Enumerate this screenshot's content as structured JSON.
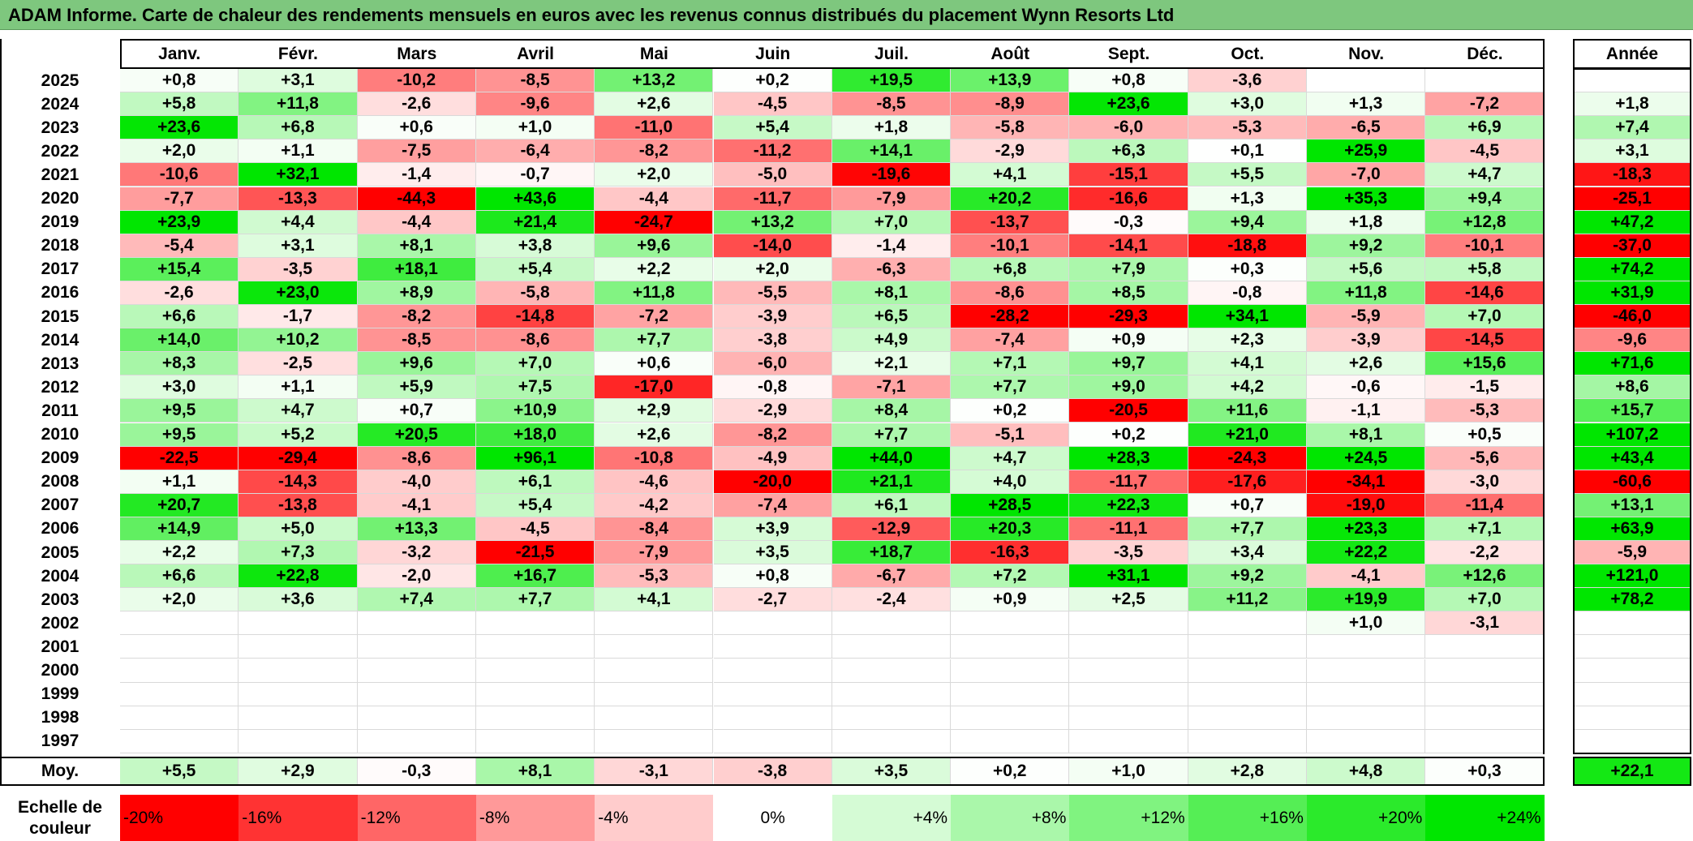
{
  "title": "ADAM Informe. Carte de chaleur des rendements mensuels en euros avec les revenus connus distribués du placement Wynn Resorts Ltd",
  "chart_data": {
    "type": "heatmap",
    "title": "ADAM Informe. Carte de chaleur des rendements mensuels en euros avec les revenus connus distribués du placement Wynn Resorts Ltd",
    "columns": [
      "Janv.",
      "Févr.",
      "Mars",
      "Avril",
      "Mai",
      "Juin",
      "Juil.",
      "Août",
      "Sept.",
      "Oct.",
      "Nov.",
      "Déc."
    ],
    "year_header": "Année",
    "rows": [
      {
        "year": "2025",
        "months": [
          "+0,8",
          "+3,1",
          "-10,2",
          "-8,5",
          "+13,2",
          "+0,2",
          "+19,5",
          "+13,9",
          "+0,8",
          "-3,6",
          "",
          ""
        ],
        "annual": ""
      },
      {
        "year": "2024",
        "months": [
          "+5,8",
          "+11,8",
          "-2,6",
          "-9,6",
          "+2,6",
          "-4,5",
          "-8,5",
          "-8,9",
          "+23,6",
          "+3,0",
          "+1,3",
          "-7,2"
        ],
        "annual": "+1,8"
      },
      {
        "year": "2023",
        "months": [
          "+23,6",
          "+6,8",
          "+0,6",
          "+1,0",
          "-11,0",
          "+5,4",
          "+1,8",
          "-5,8",
          "-6,0",
          "-5,3",
          "-6,5",
          "+6,9"
        ],
        "annual": "+7,4"
      },
      {
        "year": "2022",
        "months": [
          "+2,0",
          "+1,1",
          "-7,5",
          "-6,4",
          "-8,2",
          "-11,2",
          "+14,1",
          "-2,9",
          "+6,3",
          "+0,1",
          "+25,9",
          "-4,5"
        ],
        "annual": "+3,1"
      },
      {
        "year": "2021",
        "months": [
          "-10,6",
          "+32,1",
          "-1,4",
          "-0,7",
          "+2,0",
          "-5,0",
          "-19,6",
          "+4,1",
          "-15,1",
          "+5,5",
          "-7,0",
          "+4,7"
        ],
        "annual": "-18,3"
      },
      {
        "year": "2020",
        "months": [
          "-7,7",
          "-13,3",
          "-44,3",
          "+43,6",
          "-4,4",
          "-11,7",
          "-7,9",
          "+20,2",
          "-16,6",
          "+1,3",
          "+35,3",
          "+9,4"
        ],
        "annual": "-25,1"
      },
      {
        "year": "2019",
        "months": [
          "+23,9",
          "+4,4",
          "-4,4",
          "+21,4",
          "-24,7",
          "+13,2",
          "+7,0",
          "-13,7",
          "-0,3",
          "+9,4",
          "+1,8",
          "+12,8"
        ],
        "annual": "+47,2"
      },
      {
        "year": "2018",
        "months": [
          "-5,4",
          "+3,1",
          "+8,1",
          "+3,8",
          "+9,6",
          "-14,0",
          "-1,4",
          "-10,1",
          "-14,1",
          "-18,8",
          "+9,2",
          "-10,1"
        ],
        "annual": "-37,0"
      },
      {
        "year": "2017",
        "months": [
          "+15,4",
          "-3,5",
          "+18,1",
          "+5,4",
          "+2,2",
          "+2,0",
          "-6,3",
          "+6,8",
          "+7,9",
          "+0,3",
          "+5,6",
          "+5,8"
        ],
        "annual": "+74,2"
      },
      {
        "year": "2016",
        "months": [
          "-2,6",
          "+23,0",
          "+8,9",
          "-5,8",
          "+11,8",
          "-5,5",
          "+8,1",
          "-8,6",
          "+8,5",
          "-0,8",
          "+11,8",
          "-14,6"
        ],
        "annual": "+31,9"
      },
      {
        "year": "2015",
        "months": [
          "+6,6",
          "-1,7",
          "-8,2",
          "-14,8",
          "-7,2",
          "-3,9",
          "+6,5",
          "-28,2",
          "-29,3",
          "+34,1",
          "-5,9",
          "+7,0"
        ],
        "annual": "-46,0"
      },
      {
        "year": "2014",
        "months": [
          "+14,0",
          "+10,2",
          "-8,5",
          "-8,6",
          "+7,7",
          "-3,8",
          "+4,9",
          "-7,4",
          "+0,9",
          "+2,3",
          "-3,9",
          "-14,5"
        ],
        "annual": "-9,6"
      },
      {
        "year": "2013",
        "months": [
          "+8,3",
          "-2,5",
          "+9,6",
          "+7,0",
          "+0,6",
          "-6,0",
          "+2,1",
          "+7,1",
          "+9,7",
          "+4,1",
          "+2,6",
          "+15,6"
        ],
        "annual": "+71,6"
      },
      {
        "year": "2012",
        "months": [
          "+3,0",
          "+1,1",
          "+5,9",
          "+7,5",
          "-17,0",
          "-0,8",
          "-7,1",
          "+7,7",
          "+9,0",
          "+4,2",
          "-0,6",
          "-1,5"
        ],
        "annual": "+8,6"
      },
      {
        "year": "2011",
        "months": [
          "+9,5",
          "+4,7",
          "+0,7",
          "+10,9",
          "+2,9",
          "-2,9",
          "+8,4",
          "+0,2",
          "-20,5",
          "+11,6",
          "-1,1",
          "-5,3"
        ],
        "annual": "+15,7"
      },
      {
        "year": "2010",
        "months": [
          "+9,5",
          "+5,2",
          "+20,5",
          "+18,0",
          "+2,6",
          "-8,2",
          "+7,7",
          "-5,1",
          "+0,2",
          "+21,0",
          "+8,1",
          "+0,5"
        ],
        "annual": "+107,2"
      },
      {
        "year": "2009",
        "months": [
          "-22,5",
          "-29,4",
          "-8,6",
          "+96,1",
          "-10,8",
          "-4,9",
          "+44,0",
          "+4,7",
          "+28,3",
          "-24,3",
          "+24,5",
          "-5,6"
        ],
        "annual": "+43,4"
      },
      {
        "year": "2008",
        "months": [
          "+1,1",
          "-14,3",
          "-4,0",
          "+6,1",
          "-4,6",
          "-20,0",
          "+21,1",
          "+4,0",
          "-11,7",
          "-17,6",
          "-34,1",
          "-3,0"
        ],
        "annual": "-60,6"
      },
      {
        "year": "2007",
        "months": [
          "+20,7",
          "-13,8",
          "-4,1",
          "+5,4",
          "-4,2",
          "-7,4",
          "+6,1",
          "+28,5",
          "+22,3",
          "+0,7",
          "-19,0",
          "-11,4"
        ],
        "annual": "+13,1"
      },
      {
        "year": "2006",
        "months": [
          "+14,9",
          "+5,0",
          "+13,3",
          "-4,5",
          "-8,4",
          "+3,9",
          "-12,9",
          "+20,3",
          "-11,1",
          "+7,7",
          "+23,3",
          "+7,1"
        ],
        "annual": "+63,9"
      },
      {
        "year": "2005",
        "months": [
          "+2,2",
          "+7,3",
          "-3,2",
          "-21,5",
          "-7,9",
          "+3,5",
          "+18,7",
          "-16,3",
          "-3,5",
          "+3,4",
          "+22,2",
          "-2,2"
        ],
        "annual": "-5,9"
      },
      {
        "year": "2004",
        "months": [
          "+6,6",
          "+22,8",
          "-2,0",
          "+16,7",
          "-5,3",
          "+0,8",
          "-6,7",
          "+7,2",
          "+31,1",
          "+9,2",
          "-4,1",
          "+12,6"
        ],
        "annual": "+121,0"
      },
      {
        "year": "2003",
        "months": [
          "+2,0",
          "+3,6",
          "+7,4",
          "+7,7",
          "+4,1",
          "-2,7",
          "-2,4",
          "+0,9",
          "+2,5",
          "+11,2",
          "+19,9",
          "+7,0"
        ],
        "annual": "+78,2"
      },
      {
        "year": "2002",
        "months": [
          "",
          "",
          "",
          "",
          "",
          "",
          "",
          "",
          "",
          "",
          "+1,0",
          "-3,1"
        ],
        "annual": ""
      },
      {
        "year": "2001",
        "months": [
          "",
          "",
          "",
          "",
          "",
          "",
          "",
          "",
          "",
          "",
          "",
          ""
        ],
        "annual": ""
      },
      {
        "year": "2000",
        "months": [
          "",
          "",
          "",
          "",
          "",
          "",
          "",
          "",
          "",
          "",
          "",
          ""
        ],
        "annual": ""
      },
      {
        "year": "1999",
        "months": [
          "",
          "",
          "",
          "",
          "",
          "",
          "",
          "",
          "",
          "",
          "",
          ""
        ],
        "annual": ""
      },
      {
        "year": "1998",
        "months": [
          "",
          "",
          "",
          "",
          "",
          "",
          "",
          "",
          "",
          "",
          "",
          ""
        ],
        "annual": ""
      },
      {
        "year": "1997",
        "months": [
          "",
          "",
          "",
          "",
          "",
          "",
          "",
          "",
          "",
          "",
          "",
          ""
        ],
        "annual": ""
      }
    ],
    "average": {
      "label": "Moy.",
      "months": [
        "+5,5",
        "+2,9",
        "-0,3",
        "+8,1",
        "-3,1",
        "-3,8",
        "+3,5",
        "+0,2",
        "+1,0",
        "+2,8",
        "+4,8",
        "+0,3"
      ],
      "annual": "+22,1"
    },
    "scale": {
      "label_line1": "Echelle de",
      "label_line2": "couleur",
      "steps": [
        {
          "label": "-20%",
          "value": -20
        },
        {
          "label": "-16%",
          "value": -16
        },
        {
          "label": "-12%",
          "value": -12
        },
        {
          "label": "-8%",
          "value": -8
        },
        {
          "label": "-4%",
          "value": -4
        },
        {
          "label": "0%",
          "value": 0
        },
        {
          "label": "+4%",
          "value": 4
        },
        {
          "label": "+8%",
          "value": 8
        },
        {
          "label": "+12%",
          "value": 12
        },
        {
          "label": "+16%",
          "value": 16
        },
        {
          "label": "+20%",
          "value": 20
        },
        {
          "label": "+24%",
          "value": 24
        }
      ]
    },
    "colors": {
      "negative_max": "#ff0000",
      "neutral": "#ffffff",
      "positive_max": "#00e600"
    }
  }
}
